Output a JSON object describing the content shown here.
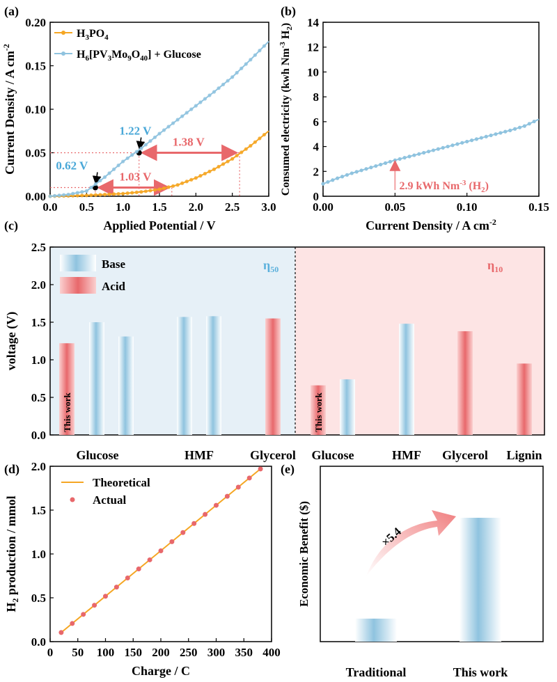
{
  "panels": {
    "a": "(a)",
    "b": "(b)",
    "c": "(c)",
    "d": "(d)",
    "e": "(e)"
  },
  "colors": {
    "orange": "#f5a623",
    "blue": "#8fc3df",
    "red": "#e8686b",
    "base_bg": "#e6f0f7",
    "acid_bg": "#fde4e4"
  },
  "chart_data": [
    {
      "panel": "a",
      "type": "line",
      "xlabel": "Applied Potential / V",
      "ylabel": "Current Density / A cm-2",
      "xlim": [
        0,
        3.0
      ],
      "ylim": [
        0,
        0.2
      ],
      "xticks": [
        "0.0",
        "0.5",
        "1.0",
        "1.5",
        "2.0",
        "2.5",
        "3.0"
      ],
      "yticks": [
        "0.00",
        "0.05",
        "0.10",
        "0.15",
        "0.20"
      ],
      "series": [
        {
          "name": "H3PO4",
          "color": "#f5a623",
          "x": [
            0,
            0.25,
            0.5,
            0.75,
            1.0,
            1.25,
            1.5,
            1.75,
            2.0,
            2.25,
            2.5,
            2.75,
            3.0
          ],
          "y": [
            0,
            0.0005,
            0.001,
            0.002,
            0.003,
            0.005,
            0.008,
            0.013,
            0.021,
            0.031,
            0.043,
            0.058,
            0.075
          ]
        },
        {
          "name": "H6[PV3Mo9O40] + Glucose",
          "color": "#8fc3df",
          "x": [
            0,
            0.25,
            0.5,
            0.75,
            1.0,
            1.25,
            1.5,
            1.75,
            2.0,
            2.25,
            2.5,
            2.75,
            3.0
          ],
          "y": [
            0,
            0.002,
            0.006,
            0.022,
            0.04,
            0.055,
            0.072,
            0.088,
            0.104,
            0.12,
            0.137,
            0.157,
            0.178
          ]
        }
      ],
      "annotations": [
        "1.22 V",
        "0.62 V",
        "1.38 V",
        "1.03 V"
      ]
    },
    {
      "panel": "b",
      "type": "line",
      "xlabel": "Current Density / A cm-2",
      "ylabel": "Consumed electricity (kwh Nm-3 H2)",
      "xlim": [
        0,
        0.15
      ],
      "ylim": [
        0,
        14
      ],
      "xticks": [
        "0.00",
        "0.05",
        "0.10",
        "0.15"
      ],
      "yticks": [
        "0",
        "2",
        "4",
        "6",
        "8",
        "10",
        "12",
        "14"
      ],
      "x": [
        0,
        0.01,
        0.02,
        0.03,
        0.04,
        0.05,
        0.06,
        0.07,
        0.08,
        0.09,
        0.1,
        0.11,
        0.12,
        0.13,
        0.14,
        0.15
      ],
      "y": [
        1.0,
        1.45,
        1.85,
        2.2,
        2.55,
        2.9,
        3.2,
        3.5,
        3.8,
        4.1,
        4.4,
        4.7,
        5.0,
        5.3,
        5.65,
        6.2
      ],
      "annotation": "2.9 kWh Nm-3 (H2)"
    },
    {
      "panel": "c",
      "type": "bar",
      "ylabel": "voltage (V)",
      "ylim": [
        0,
        2.5
      ],
      "yticks": [
        "0.0",
        "0.5",
        "1.0",
        "1.5",
        "2.0",
        "2.5"
      ],
      "legend": [
        "Base",
        "Acid"
      ],
      "regions": [
        "η50",
        "η10"
      ],
      "this_work": "This work",
      "groups": [
        "Glucose",
        "HMF",
        "Glycerol",
        "Glucose",
        "HMF",
        "Glycerol",
        "Lignin"
      ],
      "bars": [
        {
          "value": 1.22,
          "kind": "acid"
        },
        {
          "value": 1.5,
          "kind": "base"
        },
        {
          "value": 1.31,
          "kind": "base"
        },
        {
          "value": 1.57,
          "kind": "base"
        },
        {
          "value": 1.58,
          "kind": "base"
        },
        {
          "value": 1.55,
          "kind": "acid"
        },
        {
          "value": 0.66,
          "kind": "acid"
        },
        {
          "value": 0.74,
          "kind": "base"
        },
        {
          "value": 1.48,
          "kind": "base"
        },
        {
          "value": 1.38,
          "kind": "acid"
        },
        {
          "value": 0.95,
          "kind": "acid"
        }
      ]
    },
    {
      "panel": "d",
      "type": "line",
      "xlabel": "Charge / C",
      "ylabel": "H2 production / mmol",
      "xlim": [
        0,
        400
      ],
      "ylim": [
        0,
        2.0
      ],
      "xticks": [
        "0",
        "50",
        "100",
        "150",
        "200",
        "250",
        "300",
        "350",
        "400"
      ],
      "yticks": [
        "0.0",
        "0.5",
        "1.0",
        "1.5",
        "2.0"
      ],
      "series": [
        {
          "name": "Theoretical",
          "x": [
            20,
            380
          ],
          "y": [
            0.104,
            1.97
          ]
        },
        {
          "name": "Actual",
          "x": [
            20,
            40,
            60,
            80,
            100,
            120,
            140,
            160,
            180,
            200,
            220,
            240,
            260,
            280,
            300,
            320,
            340,
            360,
            380
          ],
          "y": [
            0.104,
            0.207,
            0.311,
            0.415,
            0.518,
            0.622,
            0.726,
            0.829,
            0.933,
            1.036,
            1.14,
            1.244,
            1.347,
            1.451,
            1.555,
            1.658,
            1.762,
            1.866,
            1.969
          ]
        }
      ]
    },
    {
      "panel": "e",
      "type": "bar",
      "ylabel": "Economic Benefit ($)",
      "categories": [
        "Traditional",
        "This work"
      ],
      "values": [
        0.21,
        1.13
      ],
      "annotation": "×5.4"
    }
  ]
}
